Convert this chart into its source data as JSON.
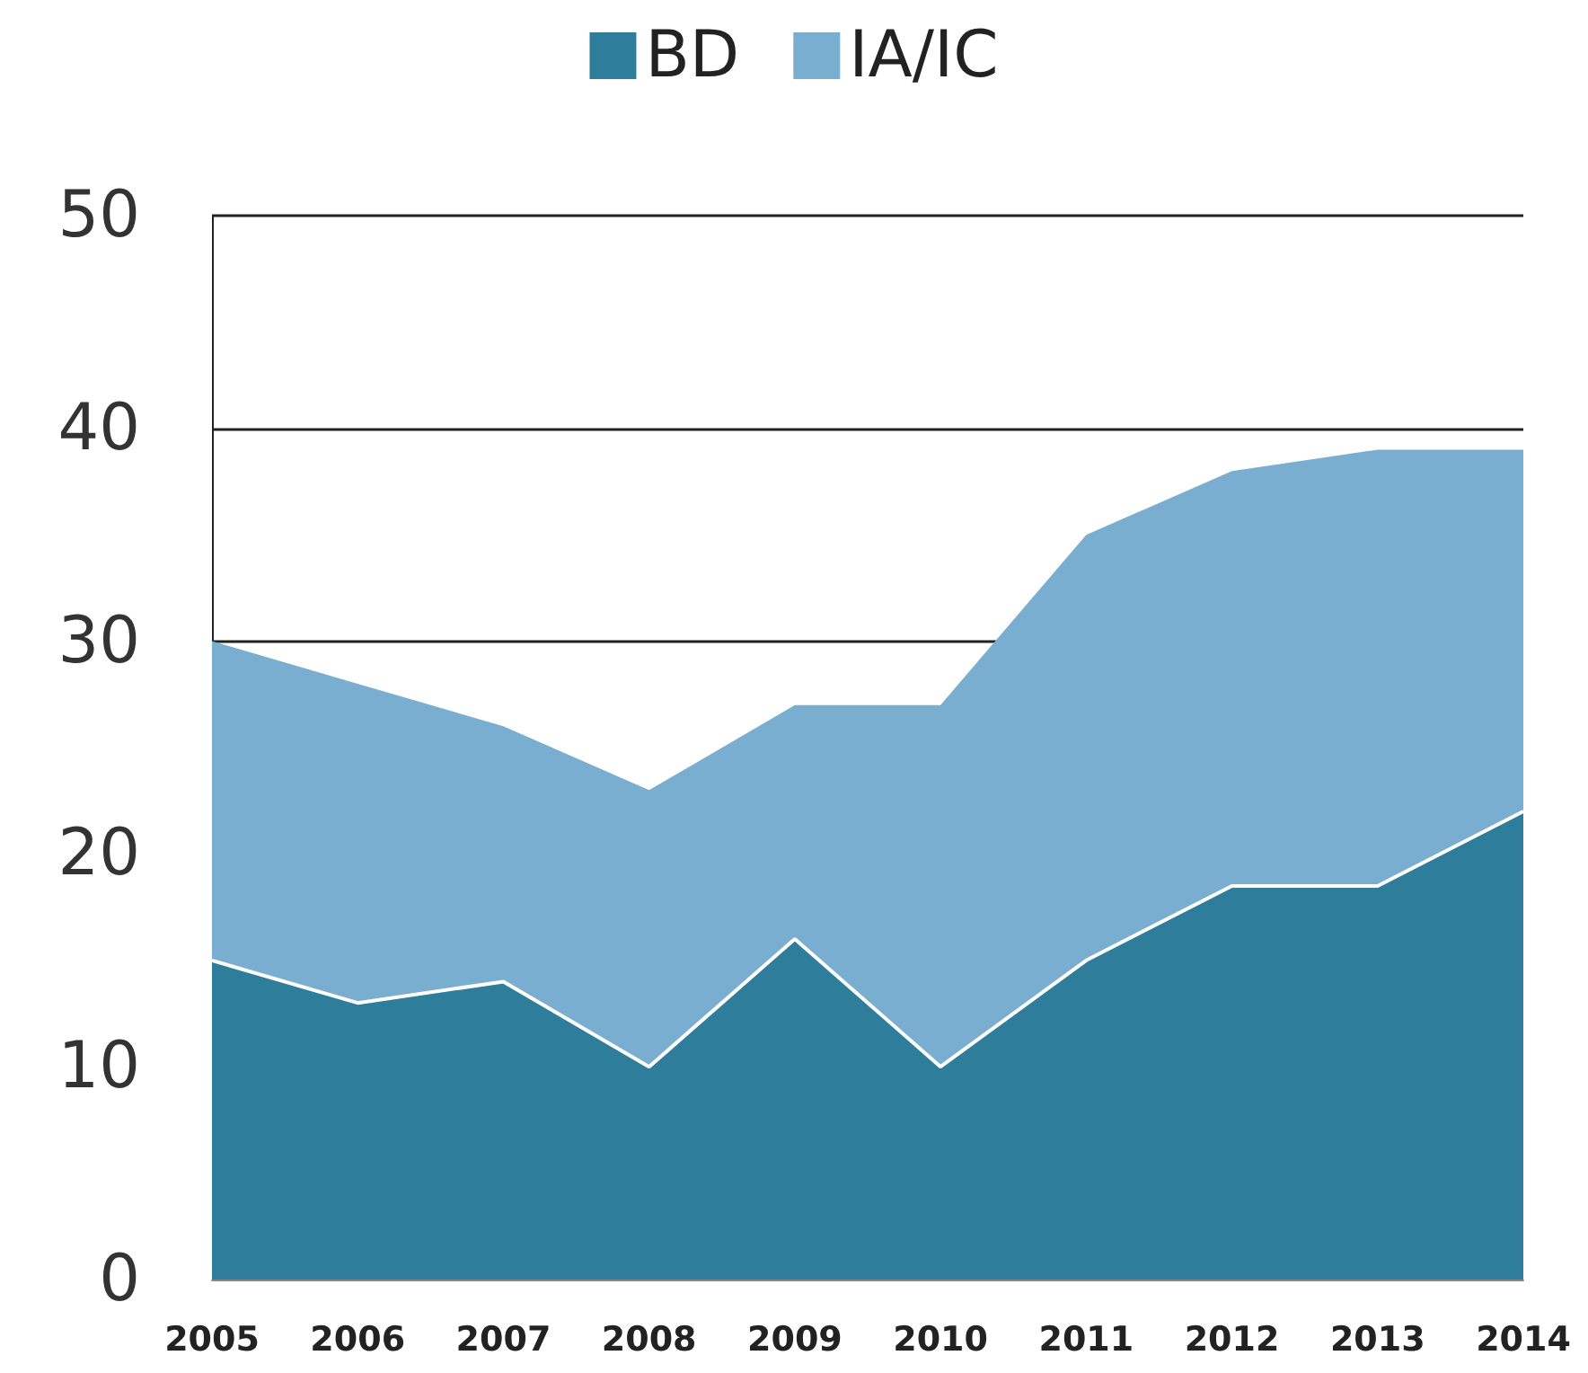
{
  "chart_data": {
    "type": "area",
    "stacked": true,
    "categories": [
      "2005",
      "2006",
      "2007",
      "2008",
      "2009",
      "2010",
      "2011",
      "2012",
      "2013",
      "2014"
    ],
    "series": [
      {
        "name": "BD",
        "color": "#2e7d9a",
        "values": [
          15,
          13,
          14,
          10,
          16,
          10,
          15,
          18.5,
          18.5,
          22
        ]
      },
      {
        "name": "IA/IC",
        "color": "#7aaed0",
        "values": [
          15,
          15,
          12,
          13,
          11,
          17,
          20,
          19.5,
          20.5,
          17
        ]
      }
    ],
    "ylim": [
      0,
      50
    ],
    "yticks": [
      0,
      10,
      20,
      30,
      40,
      50
    ],
    "grid": "y",
    "legend": "top"
  }
}
